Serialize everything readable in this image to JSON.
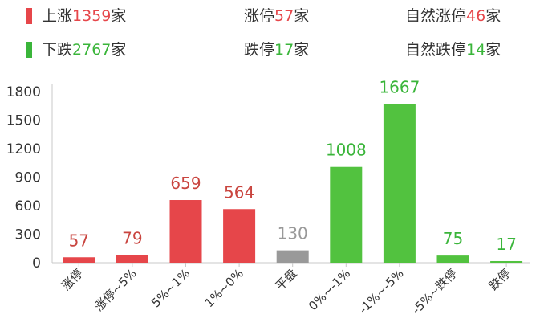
{
  "summary": {
    "row1": {
      "swatch_color": "#e6464a",
      "rise": {
        "label": "上涨",
        "value": "1359",
        "unit": "家"
      },
      "limit_up": {
        "label": "涨停",
        "value": "57",
        "unit": "家"
      },
      "natural_limit_up": {
        "label": "自然涨停",
        "value": "46",
        "unit": "家"
      }
    },
    "row2": {
      "swatch_color": "#3ab53a",
      "fall": {
        "label": "下跌",
        "value": "2767",
        "unit": "家"
      },
      "limit_down": {
        "label": "跌停",
        "value": "17",
        "unit": "家"
      },
      "natural_limit_down": {
        "label": "自然跌停",
        "value": "14",
        "unit": "家"
      }
    }
  },
  "chart_data": {
    "type": "bar",
    "categories": [
      "涨停",
      "涨停~5%",
      "5%~1%",
      "1%~0%",
      "平盘",
      "0%~-1%",
      "-1%~-5%",
      "-5%~跌停",
      "跌停"
    ],
    "values": [
      57,
      79,
      659,
      564,
      130,
      1008,
      1667,
      75,
      17
    ],
    "bar_colors": [
      "#e6464a",
      "#e6464a",
      "#e6464a",
      "#e6464a",
      "#999999",
      "#52c23f",
      "#52c23f",
      "#52c23f",
      "#52c23f"
    ],
    "label_colors": [
      "#c9453f",
      "#c9453f",
      "#c9453f",
      "#c9453f",
      "#999999",
      "#3ab53a",
      "#3ab53a",
      "#3ab53a",
      "#3ab53a"
    ],
    "yticks": [
      0,
      300,
      600,
      900,
      1200,
      1500,
      1800
    ],
    "ylim": [
      0,
      1800
    ],
    "grid": false
  }
}
